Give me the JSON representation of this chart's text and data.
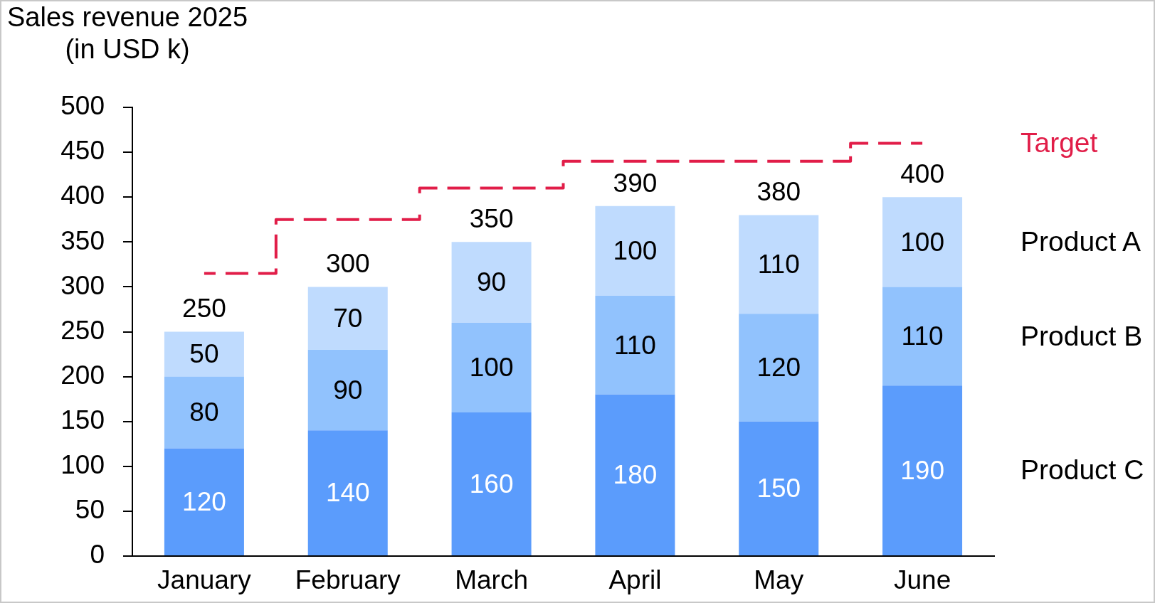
{
  "chart_data": {
    "type": "bar",
    "title": "Sales revenue 2025",
    "subtitle": "(in USD k)",
    "categories": [
      "January",
      "February",
      "March",
      "April",
      "May",
      "June"
    ],
    "series": [
      {
        "name": "Product C",
        "color": "#5b9cfc",
        "values": [
          120,
          140,
          160,
          180,
          150,
          190
        ],
        "value_labels": [
          "120",
          "140",
          "160",
          "180",
          "150",
          "190"
        ]
      },
      {
        "name": "Product B",
        "color": "#91c2fd",
        "values": [
          80,
          90,
          100,
          110,
          120,
          110
        ],
        "value_labels": [
          "80",
          "90",
          "100",
          "110",
          "120",
          "110"
        ]
      },
      {
        "name": "Product A",
        "color": "#bfdbfe",
        "values": [
          50,
          70,
          90,
          100,
          110,
          100
        ],
        "value_labels": [
          "50",
          "70",
          "90",
          "100",
          "110",
          "100"
        ]
      },
      {
        "name": "Target",
        "type": "step",
        "color": "#e11d48",
        "line_style": "dashed",
        "values": [
          315,
          375,
          410,
          440,
          440,
          460
        ]
      }
    ],
    "stacked": true,
    "ylim": [
      0,
      500
    ],
    "yticks": [
      0,
      50,
      100,
      150,
      200,
      250,
      300,
      350,
      400,
      450,
      500
    ],
    "totals": [
      "250",
      "300",
      "350",
      "390",
      "380",
      "400"
    ]
  }
}
